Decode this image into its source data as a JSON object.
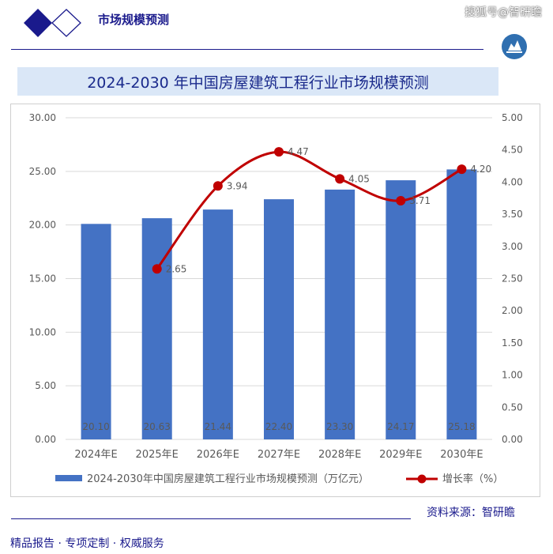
{
  "header": {
    "brand_title": "市场规模预测",
    "watermark": "搜狐号@智研瞻"
  },
  "title": "2024-2030 年中国房屋建筑工程行业市场规模预测",
  "footer": {
    "source": "资料来源：智研瞻",
    "tagline": "精品报告 · 专项定制 · 权威服务"
  },
  "colors": {
    "bar": "#4472c4",
    "line": "#c00000",
    "navy": "#1a1a8c"
  },
  "chart_data": {
    "type": "bar+line",
    "categories": [
      "2024年E",
      "2025年E",
      "2026年E",
      "2027年E",
      "2028年E",
      "2029年E",
      "2030年E"
    ],
    "series": [
      {
        "name": "2024-2030年中国房屋建筑工程行业市场规模预测（万亿元）",
        "type": "bar",
        "axis": "left",
        "values": [
          20.1,
          20.63,
          21.44,
          22.4,
          23.3,
          24.17,
          25.18
        ],
        "labels": [
          "20.10",
          "20.63",
          "21.44",
          "22.40",
          "23.30",
          "24.17",
          "25.18"
        ]
      },
      {
        "name": "增长率（%）",
        "type": "line",
        "axis": "right",
        "values": [
          null,
          2.65,
          3.94,
          4.47,
          4.05,
          3.71,
          4.2
        ],
        "labels": [
          "",
          "2.65",
          "3.94",
          "4.47",
          "4.05",
          "3.71",
          "4.20"
        ]
      }
    ],
    "y_left": {
      "min": 0,
      "max": 30,
      "ticks": [
        "0.00",
        "5.00",
        "10.00",
        "15.00",
        "20.00",
        "25.00",
        "30.00"
      ]
    },
    "y_right": {
      "min": 0,
      "max": 5,
      "ticks": [
        "0.00",
        "0.50",
        "1.00",
        "1.50",
        "2.00",
        "2.50",
        "3.00",
        "3.50",
        "4.00",
        "4.50",
        "5.00"
      ]
    },
    "grid": "horizontal",
    "legend": "bottom"
  }
}
